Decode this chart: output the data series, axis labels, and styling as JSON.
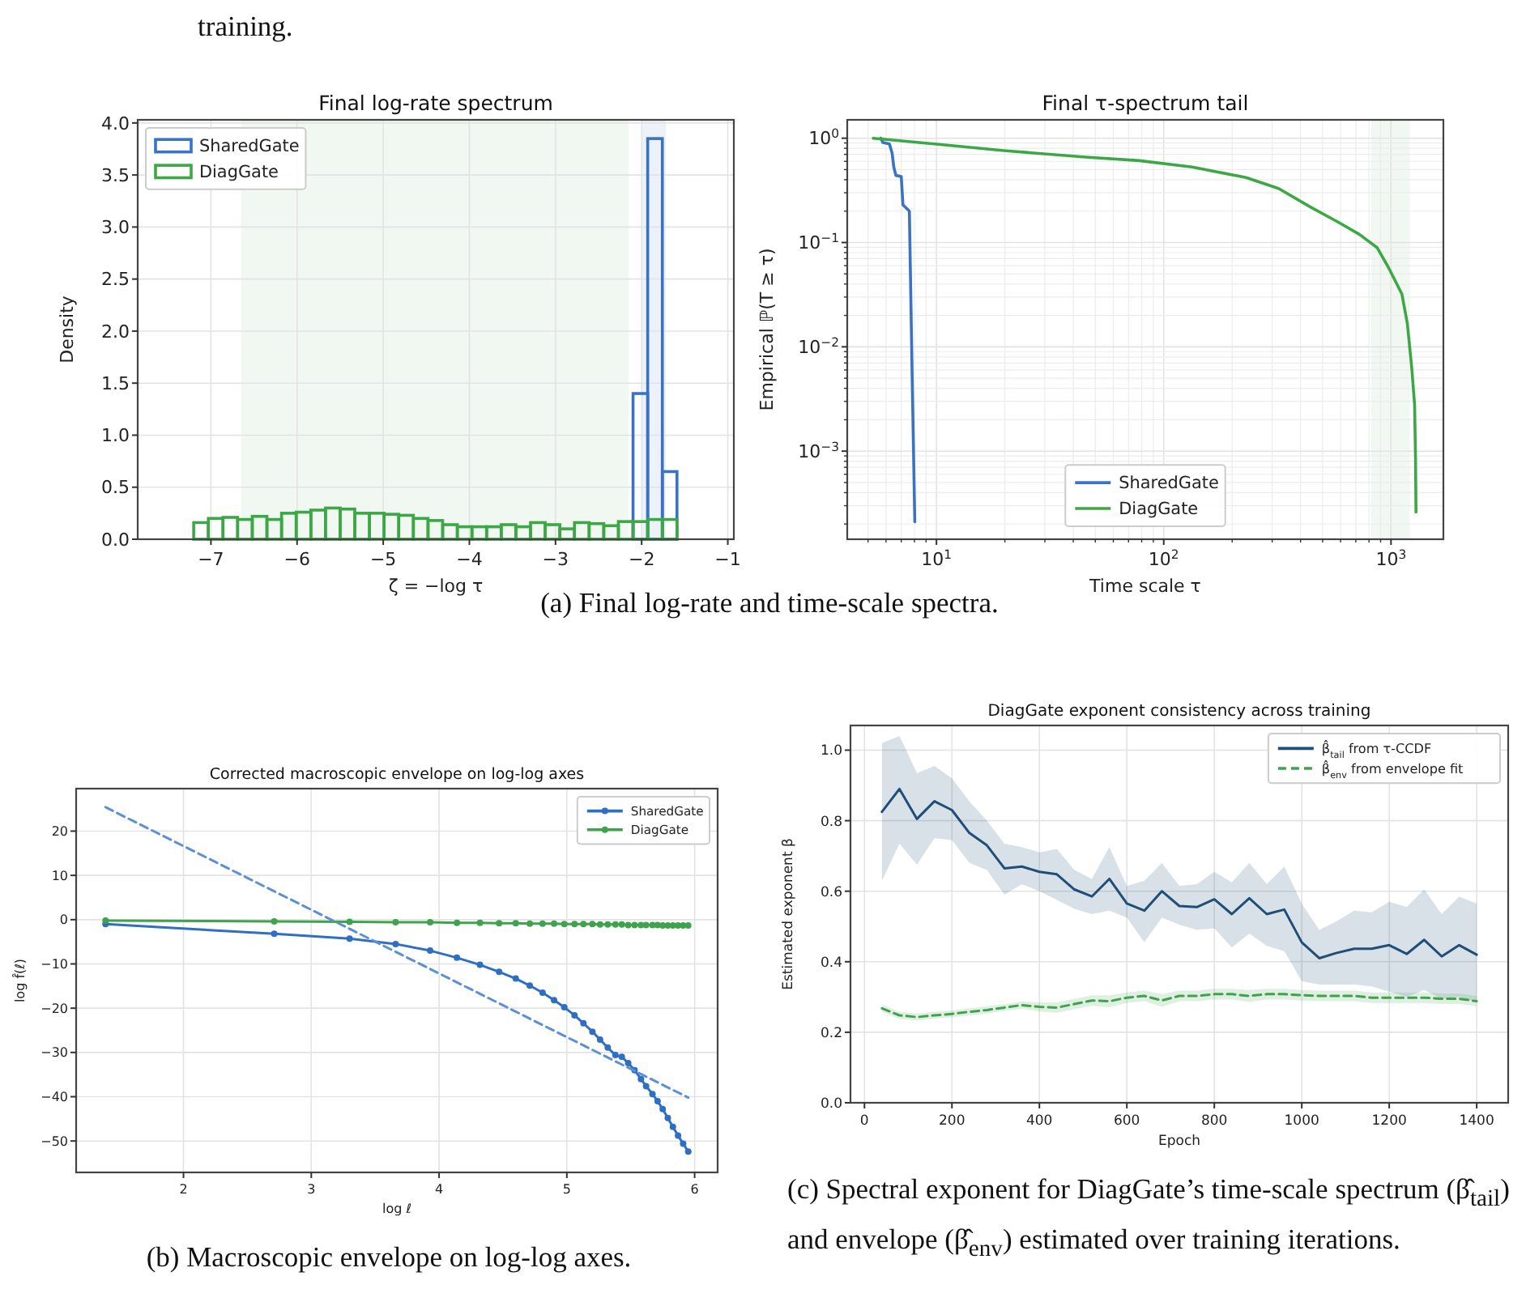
{
  "chart_data": [
    {
      "type": "histogram",
      "title": "Final log-rate spectrum",
      "xlabel": "ζ = −log τ",
      "ylabel": "Density",
      "annotations": [
        "training.",
        "(a) Final log-rate and time-scale spectra."
      ],
      "xlim": [
        -7.85,
        -0.93
      ],
      "ylim": [
        0,
        4.03
      ],
      "xticks": [
        {
          "value": -7,
          "label": "−7"
        },
        {
          "value": -6,
          "label": "−6"
        },
        {
          "value": -5,
          "label": "−5"
        },
        {
          "value": -4,
          "label": "−4"
        },
        {
          "value": -3,
          "label": "−3"
        },
        {
          "value": -2,
          "label": "−2"
        },
        {
          "value": -1,
          "label": "−1"
        }
      ],
      "yticks": [
        {
          "value": 0,
          "label": "0.0"
        },
        0.5,
        {
          "value": 1,
          "label": "1.0"
        },
        1.5,
        {
          "value": 2,
          "label": "2.0"
        },
        2.5,
        {
          "value": 3,
          "label": "3.0"
        },
        3.5,
        {
          "value": 4,
          "label": "4.0"
        }
      ],
      "grid": true,
      "legend": "top left",
      "bins": [
        -7.54,
        -7.37,
        -7.2,
        -7.03,
        -6.86,
        -6.69,
        -6.52,
        -6.35,
        -6.18,
        -6.01,
        -5.84,
        -5.67,
        -5.5,
        -5.33,
        -5.16,
        -4.99,
        -4.82,
        -4.65,
        -4.48,
        -4.31,
        -4.14,
        -3.97,
        -3.8,
        -3.63,
        -3.46,
        -3.29,
        -3.12,
        -2.95,
        -2.78,
        -2.61,
        -2.44,
        -2.27,
        -2.1,
        -1.93,
        -1.76,
        -1.59,
        -1.42,
        -1.25
      ],
      "bands": [
        {
          "axis": "x",
          "from": -6.65,
          "to": -2.15,
          "color": "#f1f7f1"
        },
        {
          "axis": "x",
          "from": -2.0,
          "to": -1.72,
          "color": "#edf2fa"
        }
      ],
      "series": [
        {
          "name": "SharedGate",
          "color": "#3a72c4",
          "values": [
            null,
            null,
            0,
            0,
            0,
            0,
            0,
            0,
            0,
            0,
            0,
            0,
            0,
            0,
            0,
            0,
            0,
            0,
            0,
            0,
            0,
            0,
            0,
            0,
            0,
            0,
            0,
            0,
            0,
            0,
            0,
            0,
            1.4,
            3.85,
            0.65,
            null,
            null
          ]
        },
        {
          "name": "DiagGate",
          "color": "#3ca845",
          "values": [
            0,
            0,
            0.16,
            0.2,
            0.21,
            0.19,
            0.22,
            0.19,
            0.25,
            0.26,
            0.28,
            0.3,
            0.29,
            0.25,
            0.25,
            0.24,
            0.23,
            0.2,
            0.18,
            0.14,
            0.12,
            0.12,
            0.12,
            0.14,
            0.12,
            0.16,
            0.14,
            0.1,
            0.16,
            0.15,
            0.13,
            0.17,
            0.17,
            0.19,
            0.19,
            0,
            0
          ]
        }
      ]
    },
    {
      "type": "line",
      "title": "Final τ-spectrum tail",
      "xlabel": "Time scale τ",
      "ylabel": "Empirical ℙ(T ≥ τ)",
      "log": "xy",
      "xlim": [
        4.05,
        1700
      ],
      "ylim": [
        0.000143,
        1.5
      ],
      "xticks": [
        {
          "value": 10,
          "label": "10$^{1}$"
        },
        {
          "value": 100,
          "label": "10$^{2}$"
        },
        {
          "value": 1000,
          "label": "10$^{3}$"
        }
      ],
      "yticks": [
        {
          "value": 0.001,
          "label": "10$^{−3}$"
        },
        {
          "value": 0.01,
          "label": "10$^{−2}$"
        },
        {
          "value": 0.1,
          "label": "10$^{−1}$"
        },
        {
          "value": 1,
          "label": "10$^{0}$"
        }
      ],
      "grid": true,
      "legend": "bottom",
      "bands": [
        {
          "axis": "x",
          "from": 820,
          "to": 1210,
          "color": "#f1f7f1"
        }
      ],
      "series": [
        {
          "name": "SharedGate",
          "color": "#3a72c4",
          "x": [
            5.69,
            5.81,
            6.21,
            6.38,
            6.49,
            6.63,
            7.0,
            7.12,
            7.6,
            7.82,
            8.03
          ],
          "values": [
            1.0,
            0.91,
            0.88,
            0.72,
            0.53,
            0.44,
            0.43,
            0.23,
            0.2,
            0.0051,
            0.00021
          ]
        },
        {
          "name": "DiagGate",
          "color": "#3ca845",
          "x": [
            5.27,
            10,
            19.8,
            45.2,
            78,
            133,
            230,
            320,
            445,
            585,
            725,
            870,
            973,
            1117,
            1180,
            1233,
            1270,
            1282,
            1288
          ],
          "values": [
            1.0,
            0.877,
            0.76,
            0.66,
            0.61,
            0.53,
            0.42,
            0.33,
            0.217,
            0.157,
            0.12,
            0.089,
            0.058,
            0.032,
            0.0167,
            0.0064,
            0.0028,
            0.00085,
            0.00026
          ]
        }
      ]
    },
    {
      "type": "line",
      "title": "Corrected macroscopic envelope on log-log axes",
      "xlabel": "log ℓ",
      "ylabel": "log f̂(ℓ)",
      "annotations": [
        "(b) Macroscopic envelope on log-log axes."
      ],
      "xlim": [
        1.16,
        6.18
      ],
      "ylim": [
        -57.1,
        29.6
      ],
      "xticks": [
        2,
        3,
        4,
        5,
        6
      ],
      "yticks": [
        {
          "value": -50,
          "label": "−50"
        },
        {
          "value": -40,
          "label": "−40"
        },
        {
          "value": -30,
          "label": "−30"
        },
        {
          "value": -20,
          "label": "−20"
        },
        {
          "value": -10,
          "label": "−10"
        },
        0,
        10,
        20
      ],
      "grid": true,
      "legend": "top right",
      "marker": "circle",
      "x": [
        1.39,
        2.71,
        3.3,
        3.66,
        3.93,
        4.14,
        4.32,
        4.47,
        4.6,
        4.71,
        4.81,
        4.9,
        4.98,
        5.06,
        5.13,
        5.2,
        5.26,
        5.32,
        5.38,
        5.43,
        5.48,
        5.53,
        5.58,
        5.62,
        5.67,
        5.71,
        5.75,
        5.79,
        5.83,
        5.87,
        5.91,
        5.95
      ],
      "series": [
        {
          "name": "SharedGate",
          "color": "#2e6fc4",
          "values": [
            -1.0,
            -3.2,
            -4.3,
            -5.5,
            -7.0,
            -8.6,
            -10.2,
            -11.8,
            -13.3,
            -14.9,
            -16.5,
            -18.2,
            -19.8,
            -21.6,
            -23.4,
            -25.3,
            -27.1,
            -28.9,
            -30.6,
            -31.0,
            -32.4,
            -34.0,
            -36.0,
            -37.6,
            -39.4,
            -41.0,
            -42.8,
            -44.8,
            -46.8,
            -48.8,
            -50.6,
            -52.4
          ]
        },
        {
          "name": "DiagGate",
          "color": "#3fa34d",
          "values": [
            -0.2,
            -0.4,
            -0.5,
            -0.6,
            -0.6,
            -0.7,
            -0.7,
            -0.8,
            -0.8,
            -0.9,
            -0.9,
            -0.9,
            -1.0,
            -1.0,
            -1.0,
            -1.0,
            -1.1,
            -1.1,
            -1.1,
            -1.1,
            -1.2,
            -1.2,
            -1.2,
            -1.2,
            -1.2,
            -1.2,
            -1.3,
            -1.3,
            -1.3,
            -1.3,
            -1.3,
            -1.3
          ]
        },
        {
          "type": "line",
          "color": "#5b8fd6",
          "x": [
            1.39,
            5.95
          ],
          "values": [
            25.4,
            -40.2
          ],
          "marker": "none",
          "line_style": "dashed"
        }
      ]
    },
    {
      "type": "line",
      "title": "DiagGate exponent consistency across training",
      "xlabel": "Epoch",
      "ylabel": "Estimated exponent β",
      "annotations": [
        "(c) Spectral exponent for DiagGate’s time-scale spectrum (β̂$_{tail}$) and envelope (β̂$_{env}$) estimated over training iterations."
      ],
      "xlim": [
        -32,
        1472
      ],
      "ylim": [
        0,
        1.07
      ],
      "xticks": [
        0,
        200,
        400,
        600,
        800,
        1000,
        1200,
        1400
      ],
      "yticks": [
        {
          "value": 0,
          "label": "0.0"
        },
        0.2,
        0.4,
        0.6,
        0.8,
        {
          "value": 1,
          "label": "1.0"
        }
      ],
      "grid": true,
      "legend": "top right",
      "x": [
        40,
        80,
        120,
        160,
        200,
        240,
        280,
        320,
        360,
        400,
        440,
        480,
        520,
        560,
        600,
        640,
        680,
        720,
        760,
        800,
        840,
        880,
        920,
        960,
        1000,
        1040,
        1080,
        1120,
        1160,
        1200,
        1240,
        1280,
        1320,
        1360,
        1400
      ],
      "series": [
        {
          "name": "β̂$_{tail}$ from τ-CCDF",
          "color": "#1f4e79",
          "values": [
            0.825,
            0.89,
            0.805,
            0.855,
            0.83,
            0.765,
            0.73,
            0.665,
            0.67,
            0.655,
            0.648,
            0.605,
            0.585,
            0.635,
            0.565,
            0.545,
            0.6,
            0.558,
            0.555,
            0.577,
            0.535,
            0.58,
            0.535,
            0.548,
            0.455,
            0.41,
            0.425,
            0.437,
            0.437,
            0.447,
            0.422,
            0.462,
            0.415,
            0.447,
            0.42
          ],
          "upper": [
            1.02,
            1.04,
            0.935,
            0.955,
            0.92,
            0.855,
            0.8,
            0.735,
            0.725,
            0.71,
            0.72,
            0.66,
            0.635,
            0.725,
            0.615,
            0.63,
            0.68,
            0.615,
            0.62,
            0.655,
            0.625,
            0.68,
            0.62,
            0.67,
            0.565,
            0.49,
            0.515,
            0.545,
            0.54,
            0.57,
            0.555,
            0.605,
            0.535,
            0.585,
            0.565
          ],
          "lower": [
            0.63,
            0.735,
            0.675,
            0.75,
            0.745,
            0.68,
            0.66,
            0.59,
            0.62,
            0.6,
            0.575,
            0.55,
            0.535,
            0.545,
            0.525,
            0.455,
            0.525,
            0.505,
            0.49,
            0.495,
            0.44,
            0.48,
            0.445,
            0.43,
            0.345,
            0.335,
            0.335,
            0.335,
            0.33,
            0.315,
            0.3,
            0.32,
            0.295,
            0.3,
            0.285
          ]
        },
        {
          "name": "β̂$_{env}$ from envelope fit",
          "color": "#3fa34d",
          "line_style": "dashed",
          "values": [
            0.268,
            0.248,
            0.243,
            0.248,
            0.252,
            0.258,
            0.263,
            0.27,
            0.277,
            0.272,
            0.27,
            0.28,
            0.29,
            0.288,
            0.298,
            0.303,
            0.29,
            0.303,
            0.303,
            0.308,
            0.308,
            0.303,
            0.308,
            0.308,
            0.305,
            0.303,
            0.303,
            0.303,
            0.298,
            0.298,
            0.298,
            0.298,
            0.295,
            0.295,
            0.288
          ],
          "upper": [
            0.278,
            0.258,
            0.253,
            0.258,
            0.262,
            0.268,
            0.273,
            0.28,
            0.287,
            0.285,
            0.285,
            0.295,
            0.305,
            0.305,
            0.313,
            0.318,
            0.308,
            0.318,
            0.318,
            0.323,
            0.323,
            0.32,
            0.323,
            0.323,
            0.32,
            0.318,
            0.318,
            0.318,
            0.313,
            0.313,
            0.313,
            0.313,
            0.31,
            0.31,
            0.303
          ],
          "lower": [
            0.258,
            0.238,
            0.233,
            0.238,
            0.242,
            0.248,
            0.253,
            0.26,
            0.267,
            0.259,
            0.255,
            0.265,
            0.275,
            0.271,
            0.283,
            0.288,
            0.272,
            0.288,
            0.288,
            0.293,
            0.293,
            0.286,
            0.293,
            0.293,
            0.29,
            0.288,
            0.288,
            0.288,
            0.283,
            0.283,
            0.283,
            0.283,
            0.28,
            0.28,
            0.273
          ]
        }
      ]
    }
  ]
}
